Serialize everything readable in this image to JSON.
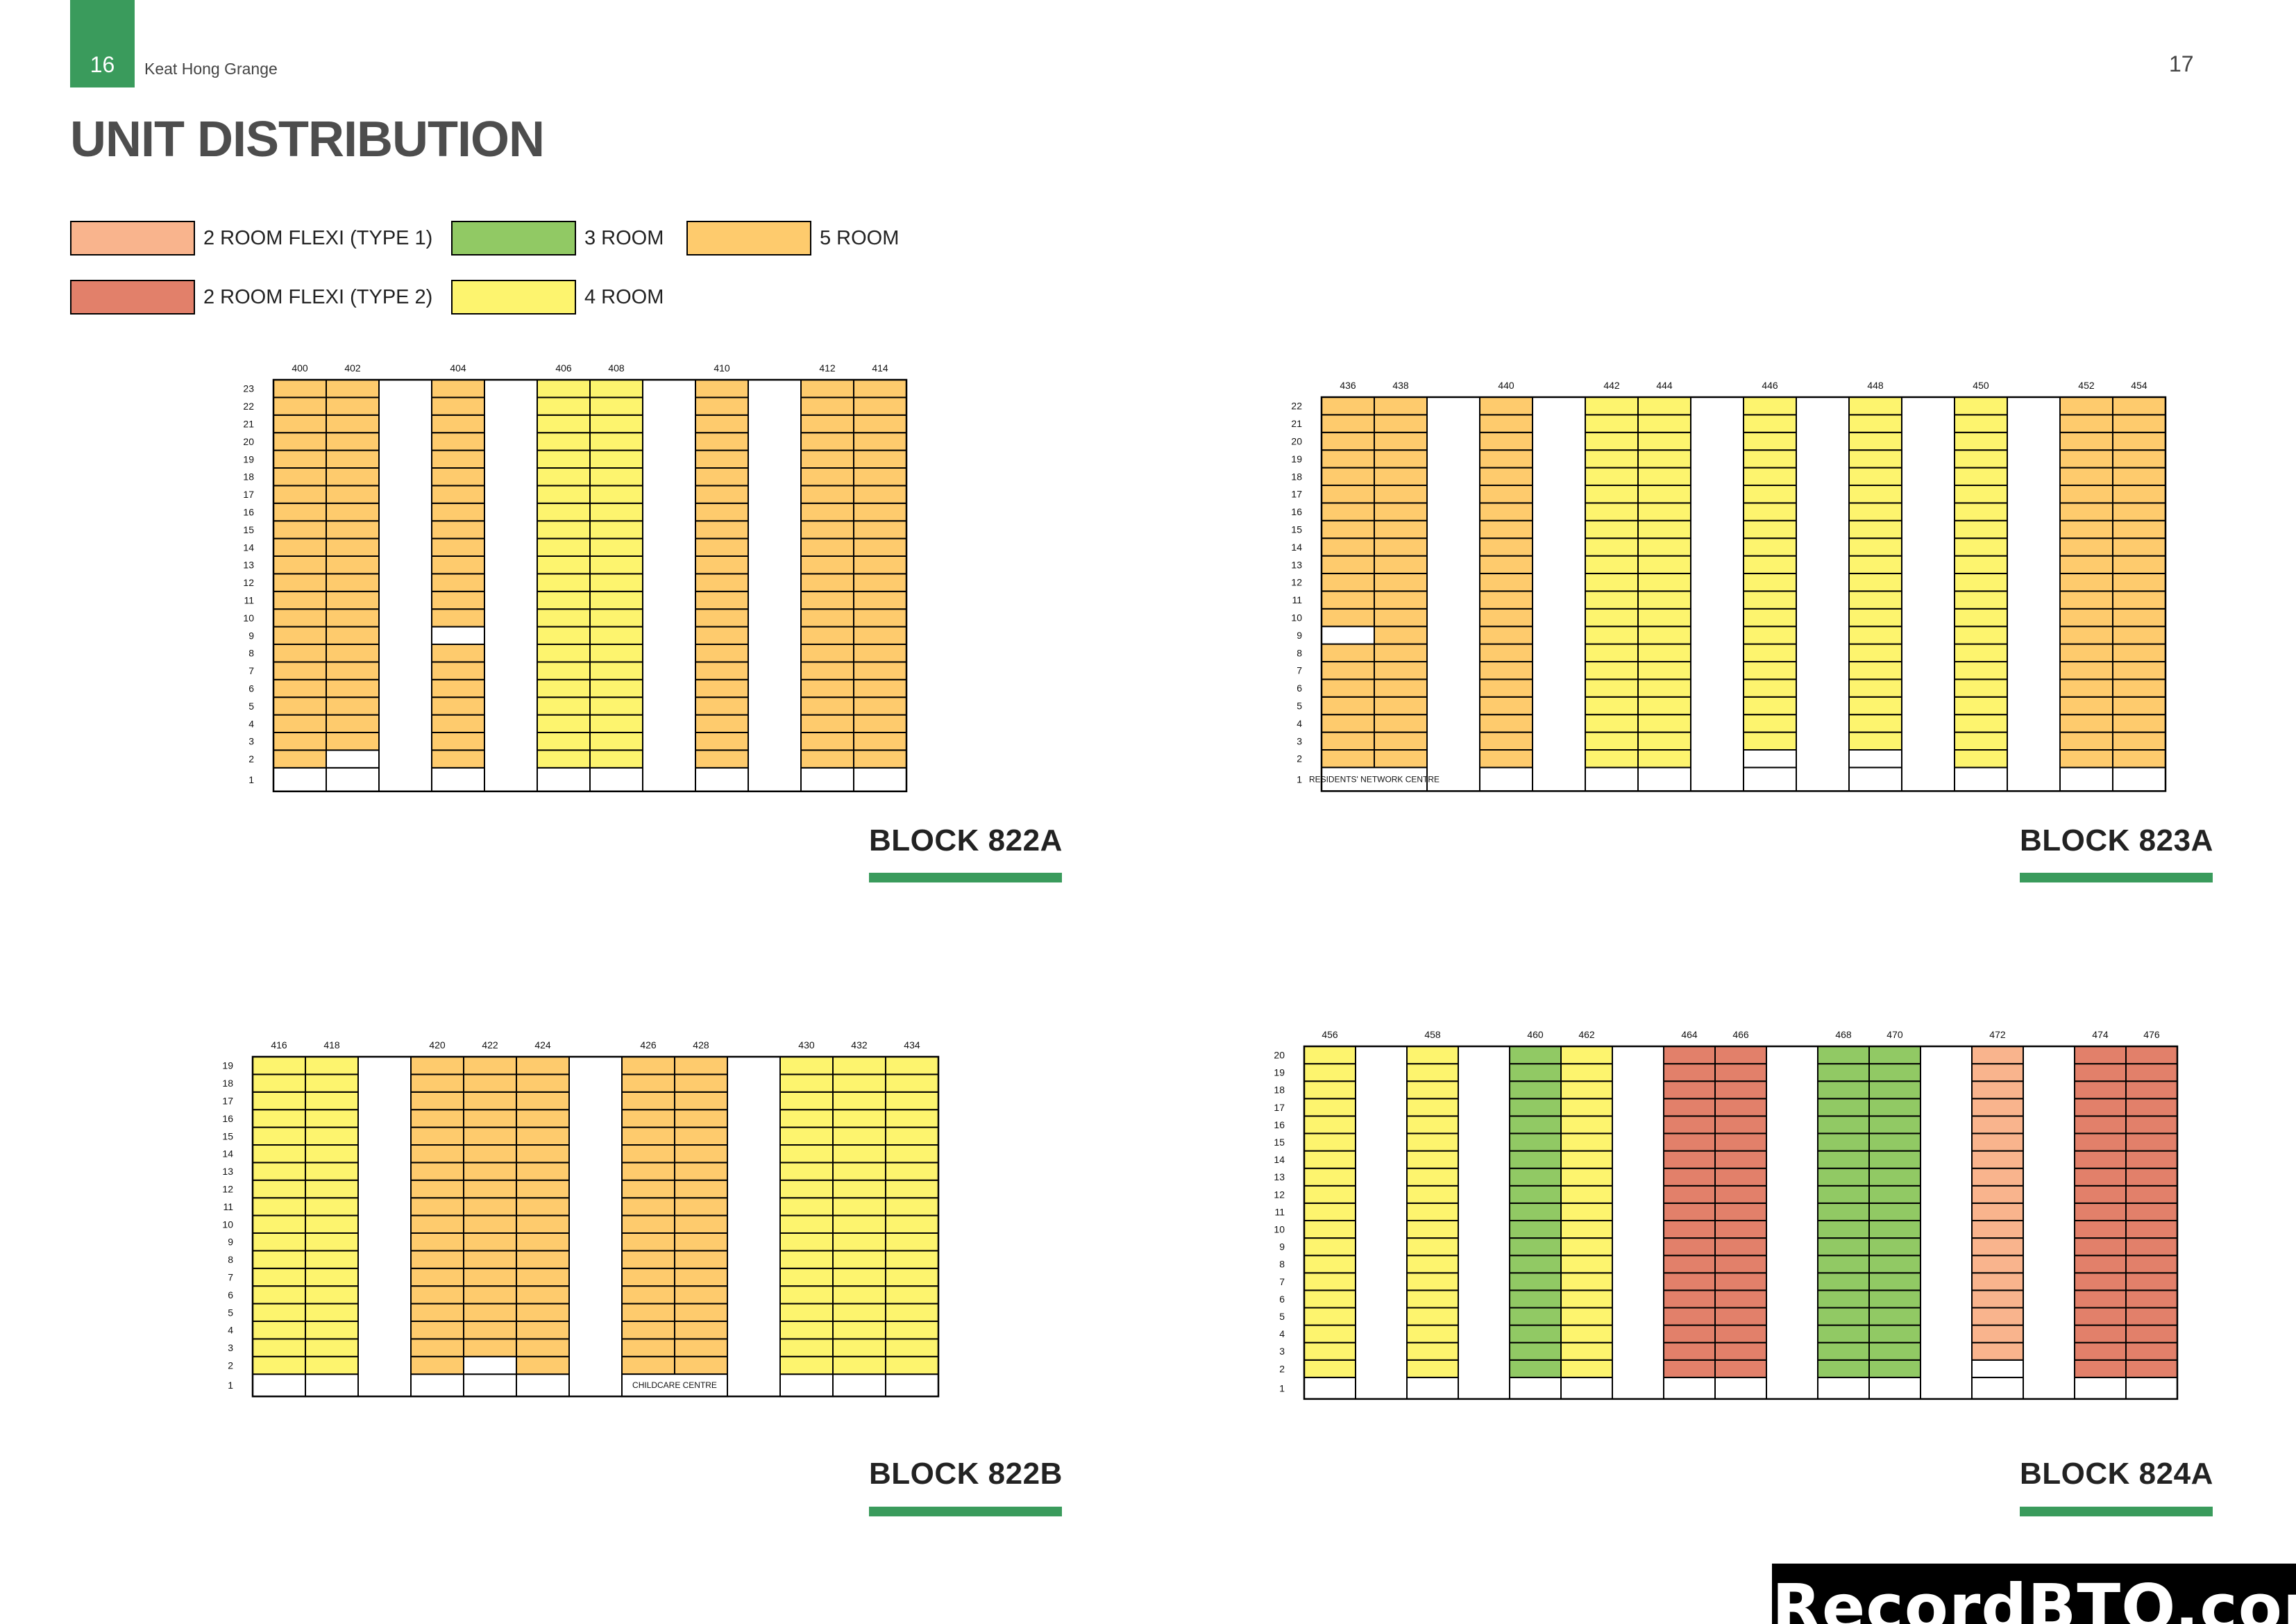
{
  "header": {
    "page_left": "16",
    "doc_title": "Keat Hong Grange",
    "page_right": "17"
  },
  "title": "UNIT DISTRIBUTION",
  "colors": {
    "accent": "#3a9b5c",
    "empty": "#ffffff"
  },
  "legend": [
    {
      "key": "F1",
      "label": "2 ROOM FLEXI (TYPE 1)",
      "color": "#f9b48d"
    },
    {
      "key": "F2",
      "label": "2 ROOM FLEXI (TYPE 2)",
      "color": "#e2806a"
    },
    {
      "key": "R3",
      "label": "3 ROOM",
      "color": "#91c964"
    },
    {
      "key": "R4",
      "label": "4 ROOM",
      "color": "#fdf46e"
    },
    {
      "key": "R5",
      "label": "5 ROOM",
      "color": "#fecb6d"
    }
  ],
  "blocks": [
    {
      "label": "BLOCK 822A",
      "floors": 23,
      "columns": [
        {
          "unit": "400",
          "type": "R5",
          "empty_floors": [
            1
          ]
        },
        {
          "unit": "402",
          "type": "R5",
          "empty_floors": [
            1,
            2
          ]
        },
        {
          "gap": true
        },
        {
          "unit": "404",
          "type": "R5",
          "empty_floors": [
            1,
            9
          ]
        },
        {
          "gap": true
        },
        {
          "unit": "406",
          "type": "R4",
          "empty_floors": [
            1
          ]
        },
        {
          "unit": "408",
          "type": "R4",
          "empty_floors": [
            1
          ]
        },
        {
          "gap": true
        },
        {
          "unit": "410",
          "type": "R5",
          "empty_floors": [
            1
          ]
        },
        {
          "gap": true
        },
        {
          "unit": "412",
          "type": "R5",
          "empty_floors": [
            1
          ]
        },
        {
          "unit": "414",
          "type": "R5",
          "empty_floors": [
            1
          ]
        }
      ],
      "notes": []
    },
    {
      "label": "BLOCK 823A",
      "floors": 22,
      "columns": [
        {
          "unit": "436",
          "type": "R5",
          "empty_floors": [
            1,
            9
          ]
        },
        {
          "unit": "438",
          "type": "R5",
          "empty_floors": [
            1
          ]
        },
        {
          "gap": true
        },
        {
          "unit": "440",
          "type": "R5",
          "empty_floors": [
            1
          ]
        },
        {
          "gap": true
        },
        {
          "unit": "442",
          "type": "R4",
          "empty_floors": [
            1
          ]
        },
        {
          "unit": "444",
          "type": "R4",
          "empty_floors": [
            1
          ]
        },
        {
          "gap": true
        },
        {
          "unit": "446",
          "type": "R4",
          "empty_floors": [
            1,
            2
          ]
        },
        {
          "gap": true
        },
        {
          "unit": "448",
          "type": "R4",
          "empty_floors": [
            1,
            2
          ]
        },
        {
          "gap": true
        },
        {
          "unit": "450",
          "type": "R4",
          "empty_floors": [
            1
          ]
        },
        {
          "gap": true
        },
        {
          "unit": "452",
          "type": "R5",
          "empty_floors": [
            1
          ]
        },
        {
          "unit": "454",
          "type": "R5",
          "empty_floors": [
            1
          ]
        }
      ],
      "notes": [
        {
          "col_start": 0,
          "col_span": 2,
          "floor": 1,
          "text": "RESIDENTS' NETWORK CENTRE"
        }
      ]
    },
    {
      "label": "BLOCK 822B",
      "floors": 19,
      "columns": [
        {
          "unit": "416",
          "type": "R4",
          "empty_floors": [
            1
          ]
        },
        {
          "unit": "418",
          "type": "R4",
          "empty_floors": [
            1
          ]
        },
        {
          "gap": true
        },
        {
          "unit": "420",
          "type": "R5",
          "empty_floors": [
            1
          ]
        },
        {
          "unit": "422",
          "type": "R5",
          "empty_floors": [
            1,
            2
          ]
        },
        {
          "unit": "424",
          "type": "R5",
          "empty_floors": [
            1
          ]
        },
        {
          "gap": true
        },
        {
          "unit": "426",
          "type": "R5",
          "empty_floors": [
            1
          ]
        },
        {
          "unit": "428",
          "type": "R5",
          "empty_floors": [
            1
          ]
        },
        {
          "gap": true
        },
        {
          "unit": "430",
          "type": "R4",
          "empty_floors": [
            1
          ]
        },
        {
          "unit": "432",
          "type": "R4",
          "empty_floors": [
            1
          ]
        },
        {
          "unit": "434",
          "type": "R4",
          "empty_floors": [
            1
          ]
        }
      ],
      "notes": [
        {
          "col_start": 7,
          "col_span": 2,
          "floor": 1,
          "text": "CHILDCARE CENTRE"
        }
      ]
    },
    {
      "label": "BLOCK 824A",
      "floors": 20,
      "columns": [
        {
          "unit": "456",
          "type": "R4",
          "empty_floors": [
            1
          ]
        },
        {
          "gap": true
        },
        {
          "unit": "458",
          "type": "R4",
          "empty_floors": [
            1
          ]
        },
        {
          "gap": true
        },
        {
          "unit": "460",
          "type": "R3",
          "empty_floors": [
            1
          ]
        },
        {
          "unit": "462",
          "type": "R4",
          "empty_floors": [
            1
          ]
        },
        {
          "gap": true
        },
        {
          "unit": "464",
          "type": "F2",
          "empty_floors": [
            1
          ]
        },
        {
          "unit": "466",
          "type": "F2",
          "empty_floors": [
            1
          ]
        },
        {
          "gap": true
        },
        {
          "unit": "468",
          "type": "R3",
          "empty_floors": [
            1
          ]
        },
        {
          "unit": "470",
          "type": "R3",
          "empty_floors": [
            1
          ]
        },
        {
          "gap": true
        },
        {
          "unit": "472",
          "type": "F1",
          "empty_floors": [
            1,
            2
          ]
        },
        {
          "gap": true
        },
        {
          "unit": "474",
          "type": "F2",
          "empty_floors": [
            1
          ]
        },
        {
          "unit": "476",
          "type": "F2",
          "empty_floors": [
            1
          ]
        }
      ],
      "notes": []
    }
  ],
  "watermark": "RecordBTO.com"
}
